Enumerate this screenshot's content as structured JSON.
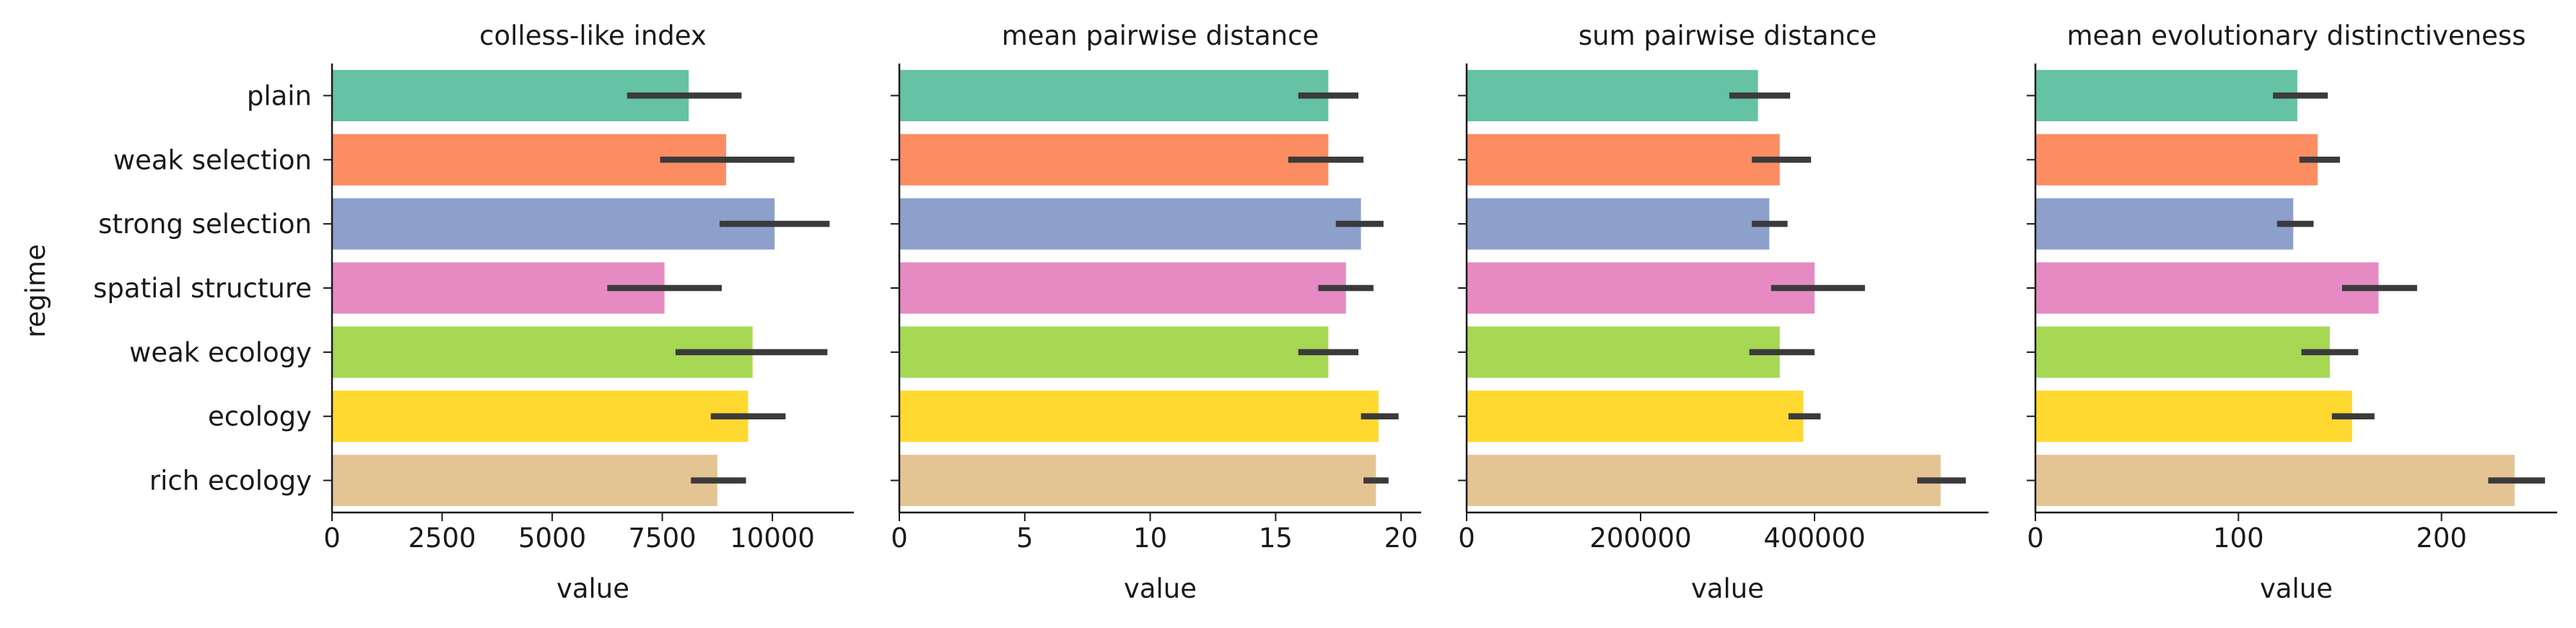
{
  "figure": {
    "y_axis_label": "regime",
    "palette": [
      "#66c2a5",
      "#fc8d62",
      "#8da0cb",
      "#e78ac3",
      "#a6d854",
      "#ffd92f",
      "#e5c494"
    ],
    "error_bar_color": "#3b3b3b"
  },
  "chart_data": [
    {
      "type": "bar",
      "orientation": "horizontal",
      "title": "colless-like index",
      "xlabel": "value",
      "ylabel": "regime",
      "categories": [
        "plain",
        "weak selection",
        "strong selection",
        "spatial structure",
        "weak ecology",
        "ecology",
        "rich ecology"
      ],
      "values": [
        8100,
        8950,
        10050,
        7550,
        9550,
        9450,
        8750
      ],
      "ci_low": [
        6700,
        7450,
        8800,
        6250,
        7800,
        8600,
        8150
      ],
      "ci_high": [
        9300,
        10500,
        11300,
        8850,
        11250,
        10300,
        9400
      ],
      "xlim": [
        0,
        11850
      ],
      "xticks": [
        0,
        2500,
        5000,
        7500,
        10000
      ],
      "xtick_labels": [
        "0",
        "2500",
        "5000",
        "7500",
        "10000"
      ]
    },
    {
      "type": "bar",
      "orientation": "horizontal",
      "title": "mean pairwise distance",
      "xlabel": "value",
      "categories": [
        "plain",
        "weak selection",
        "strong selection",
        "spatial structure",
        "weak ecology",
        "ecology",
        "rich ecology"
      ],
      "values": [
        17.1,
        17.1,
        18.4,
        17.8,
        17.1,
        19.1,
        19.0
      ],
      "ci_low": [
        15.9,
        15.5,
        17.4,
        16.7,
        15.9,
        18.4,
        18.5
      ],
      "ci_high": [
        18.3,
        18.5,
        19.3,
        18.9,
        18.3,
        19.9,
        19.5
      ],
      "xlim": [
        0,
        20.8
      ],
      "xticks": [
        0,
        5,
        10,
        15,
        20
      ],
      "xtick_labels": [
        "0",
        "5",
        "10",
        "15",
        "20"
      ]
    },
    {
      "type": "bar",
      "orientation": "horizontal",
      "title": "sum pairwise distance",
      "xlabel": "value",
      "categories": [
        "plain",
        "weak selection",
        "strong selection",
        "spatial structure",
        "weak ecology",
        "ecology",
        "rich ecology"
      ],
      "values": [
        335000,
        360000,
        348000,
        400000,
        360000,
        387000,
        545000
      ],
      "ci_low": [
        302000,
        328000,
        328000,
        350000,
        325000,
        370000,
        518000
      ],
      "ci_high": [
        372000,
        396000,
        369000,
        458000,
        400000,
        407000,
        574000
      ],
      "xlim": [
        0,
        600000
      ],
      "xticks": [
        0,
        200000,
        400000
      ],
      "xtick_labels": [
        "0",
        "200000",
        "400000"
      ]
    },
    {
      "type": "bar",
      "orientation": "horizontal",
      "title": "mean evolutionary distinctiveness",
      "xlabel": "value",
      "categories": [
        "plain",
        "weak selection",
        "strong selection",
        "spatial structure",
        "weak ecology",
        "ecology",
        "rich ecology"
      ],
      "values": [
        129,
        139,
        127,
        169,
        145,
        156,
        236
      ],
      "ci_low": [
        117,
        130,
        119,
        151,
        131,
        146,
        223
      ],
      "ci_high": [
        144,
        150,
        137,
        188,
        159,
        167,
        251
      ],
      "xlim": [
        0,
        257
      ],
      "xticks": [
        0,
        100,
        200
      ],
      "xtick_labels": [
        "0",
        "100",
        "200"
      ]
    }
  ]
}
